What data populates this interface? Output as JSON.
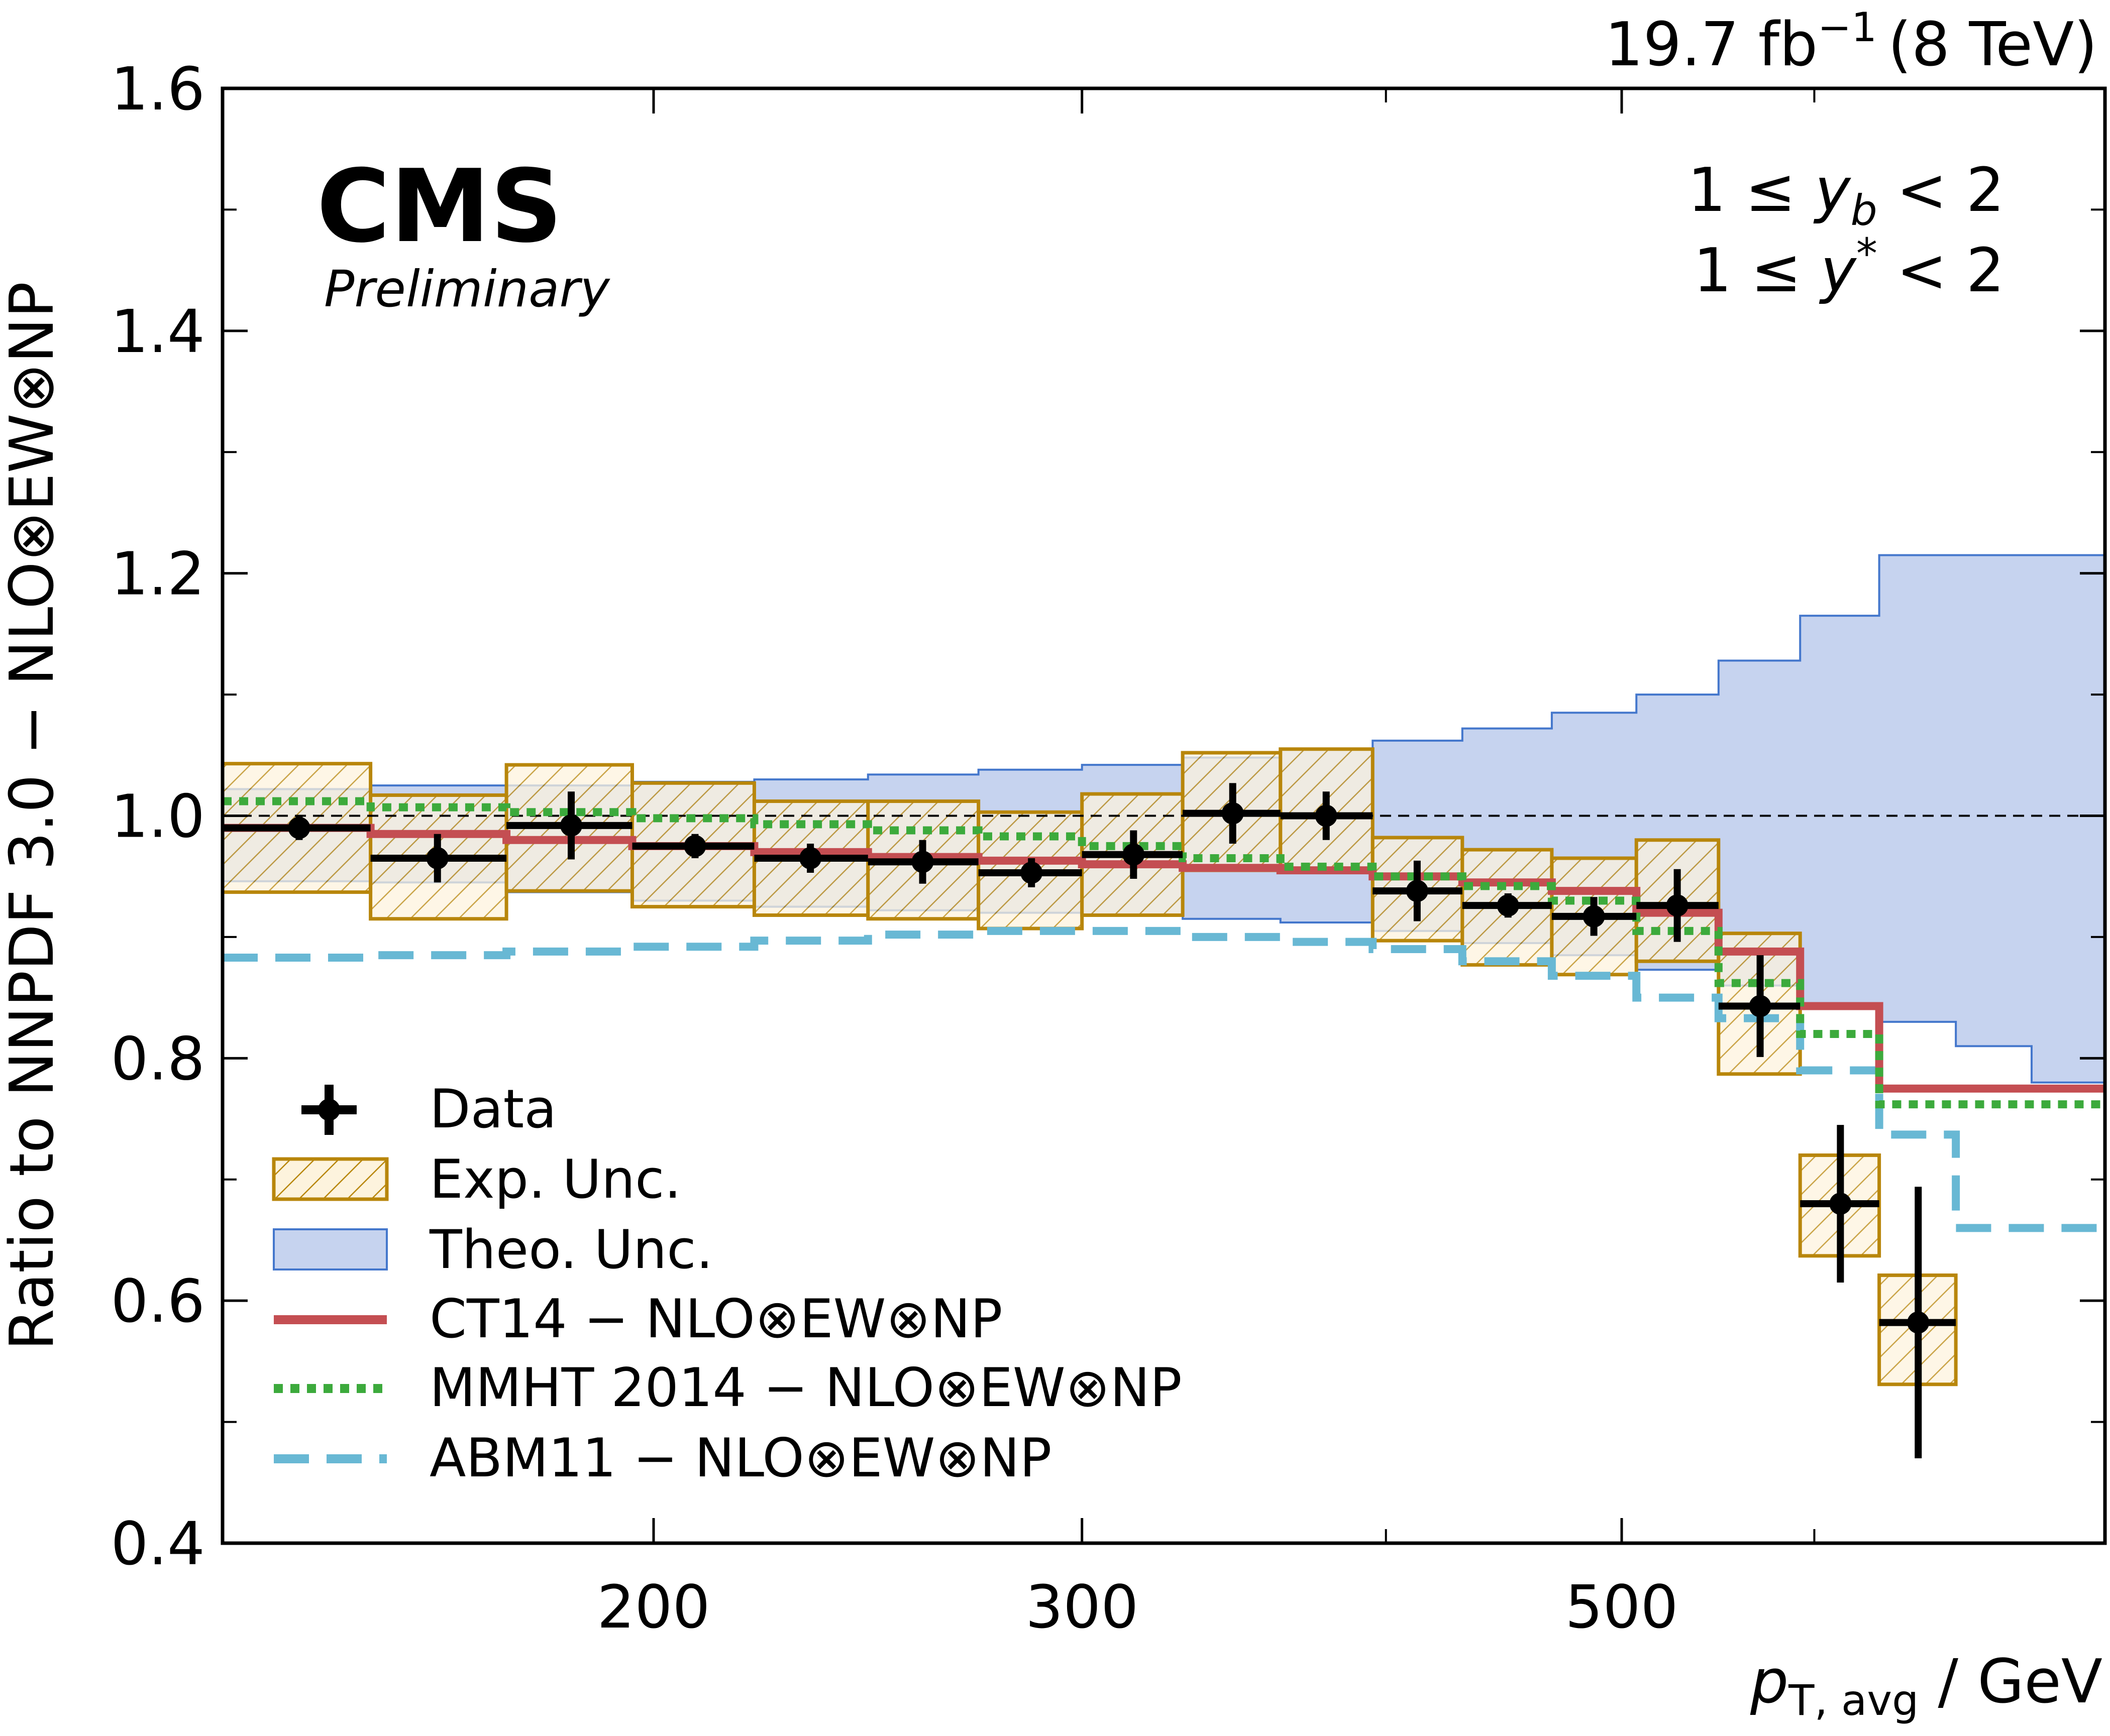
{
  "header": {
    "lumi_label": "19.7 fb",
    "lumi_exp": "−1",
    "energy_label": "(8 TeV)"
  },
  "branding": {
    "experiment": "CMS",
    "status": "Preliminary"
  },
  "region": {
    "line1_prefix": "1 ≤ ",
    "line1_var": "y",
    "line1_sub": "b",
    "line1_suffix": " < 2",
    "line2_prefix": "1 ≤ ",
    "line2_var": "y",
    "line2_sup": "*",
    "line2_suffix": " < 2"
  },
  "axes": {
    "ylabel": "Ratio to NNPDF 3.0 − NLO⊗EW⊗NP",
    "xlabel_var": "p",
    "xlabel_sub": "T, avg",
    "xlabel_unit": " / GeV"
  },
  "colors": {
    "data": "#000000",
    "exp_edge": "#b8860b",
    "exp_fill": "#fdf3dd",
    "theo_edge": "#4477cc",
    "theo_fill": "#c6d3ef",
    "ct14": "#c44e52",
    "mmht": "#3caa3c",
    "abm11": "#68b8d4"
  },
  "chart_data": {
    "type": "step",
    "x_scale": "log",
    "xlim": [
      133,
      790
    ],
    "ylim": [
      0.4,
      1.6
    ],
    "x_ticks": [
      200,
      300,
      500
    ],
    "x_tick_labels": [
      "200",
      "300",
      "500"
    ],
    "x_minor_ticks": [
      400,
      600
    ],
    "y_ticks": [
      0.4,
      0.6,
      0.8,
      1.0,
      1.2,
      1.4,
      1.6
    ],
    "y_tick_labels": [
      "0.4",
      "0.6",
      "0.8",
      "1.0",
      "1.2",
      "1.4",
      "1.6"
    ],
    "reference_line": 1.0,
    "bin_edges": [
      133,
      153,
      174,
      196,
      220,
      245,
      272,
      300,
      330,
      362,
      395,
      430,
      468,
      507,
      548,
      592,
      638,
      686,
      737,
      790
    ],
    "series": [
      {
        "key": "data",
        "name": "Data",
        "type": "points",
        "x": [
          143,
          163,
          185,
          208,
          232,
          258,
          286,
          315,
          346,
          378,
          412,
          449,
          487,
          527,
          570,
          615,
          662,
          711,
          763
        ],
        "y": [
          0.99,
          0.965,
          0.992,
          0.975,
          0.965,
          0.962,
          0.953,
          0.968,
          1.002,
          1.0,
          0.938,
          0.926,
          0.917,
          0.926,
          0.843,
          0.68,
          0.582,
          null,
          null
        ],
        "yerr": [
          0.01,
          0.02,
          0.028,
          0.01,
          0.012,
          0.018,
          0.012,
          0.02,
          0.025,
          0.02,
          0.025,
          0.01,
          0.016,
          0.03,
          0.042,
          0.065,
          0.112,
          null,
          null
        ]
      },
      {
        "key": "exp",
        "name": "Exp. Unc.",
        "type": "band",
        "low": [
          0.937,
          0.915,
          0.938,
          0.925,
          0.918,
          0.915,
          0.907,
          0.918,
          0.955,
          0.955,
          0.897,
          0.877,
          0.869,
          0.88,
          0.787,
          0.637,
          0.531
        ],
        "high": [
          1.043,
          1.017,
          1.042,
          1.027,
          1.012,
          1.012,
          1.003,
          1.018,
          1.052,
          1.055,
          0.982,
          0.972,
          0.965,
          0.98,
          0.903,
          0.72,
          0.621
        ]
      },
      {
        "key": "theo",
        "name": "Theo. Unc.",
        "type": "band",
        "low": [
          0.946,
          0.945,
          0.937,
          0.93,
          0.925,
          0.922,
          0.92,
          0.918,
          0.915,
          0.912,
          0.905,
          0.895,
          0.885,
          0.873,
          0.86,
          0.845,
          0.83,
          0.81,
          0.78
        ],
        "high": [
          1.022,
          1.025,
          1.025,
          1.028,
          1.03,
          1.034,
          1.038,
          1.042,
          1.048,
          1.055,
          1.062,
          1.072,
          1.085,
          1.1,
          1.128,
          1.165,
          1.215,
          1.215,
          1.215
        ]
      },
      {
        "key": "ct14",
        "name": "CT14 − NLO⊗EW⊗NP",
        "type": "step",
        "values": [
          0.99,
          0.985,
          0.98,
          0.975,
          0.97,
          0.966,
          0.963,
          0.96,
          0.957,
          0.955,
          0.95,
          0.945,
          0.938,
          0.92,
          0.888,
          0.843,
          0.775,
          0.775,
          0.775
        ]
      },
      {
        "key": "mmht",
        "name": "MMHT 2014 − NLO⊗EW⊗NP",
        "type": "step",
        "values": [
          1.012,
          1.007,
          1.003,
          0.998,
          0.993,
          0.988,
          0.983,
          0.975,
          0.965,
          0.958,
          0.95,
          0.942,
          0.93,
          0.905,
          0.862,
          0.82,
          0.762,
          0.762,
          0.762
        ]
      },
      {
        "key": "abm11",
        "name": "ABM11 − NLO⊗EW⊗NP",
        "type": "step",
        "values": [
          0.883,
          0.885,
          0.888,
          0.892,
          0.897,
          0.902,
          0.905,
          0.905,
          0.9,
          0.896,
          0.89,
          0.88,
          0.868,
          0.85,
          0.833,
          0.79,
          0.737,
          0.66,
          0.66
        ]
      }
    ]
  }
}
